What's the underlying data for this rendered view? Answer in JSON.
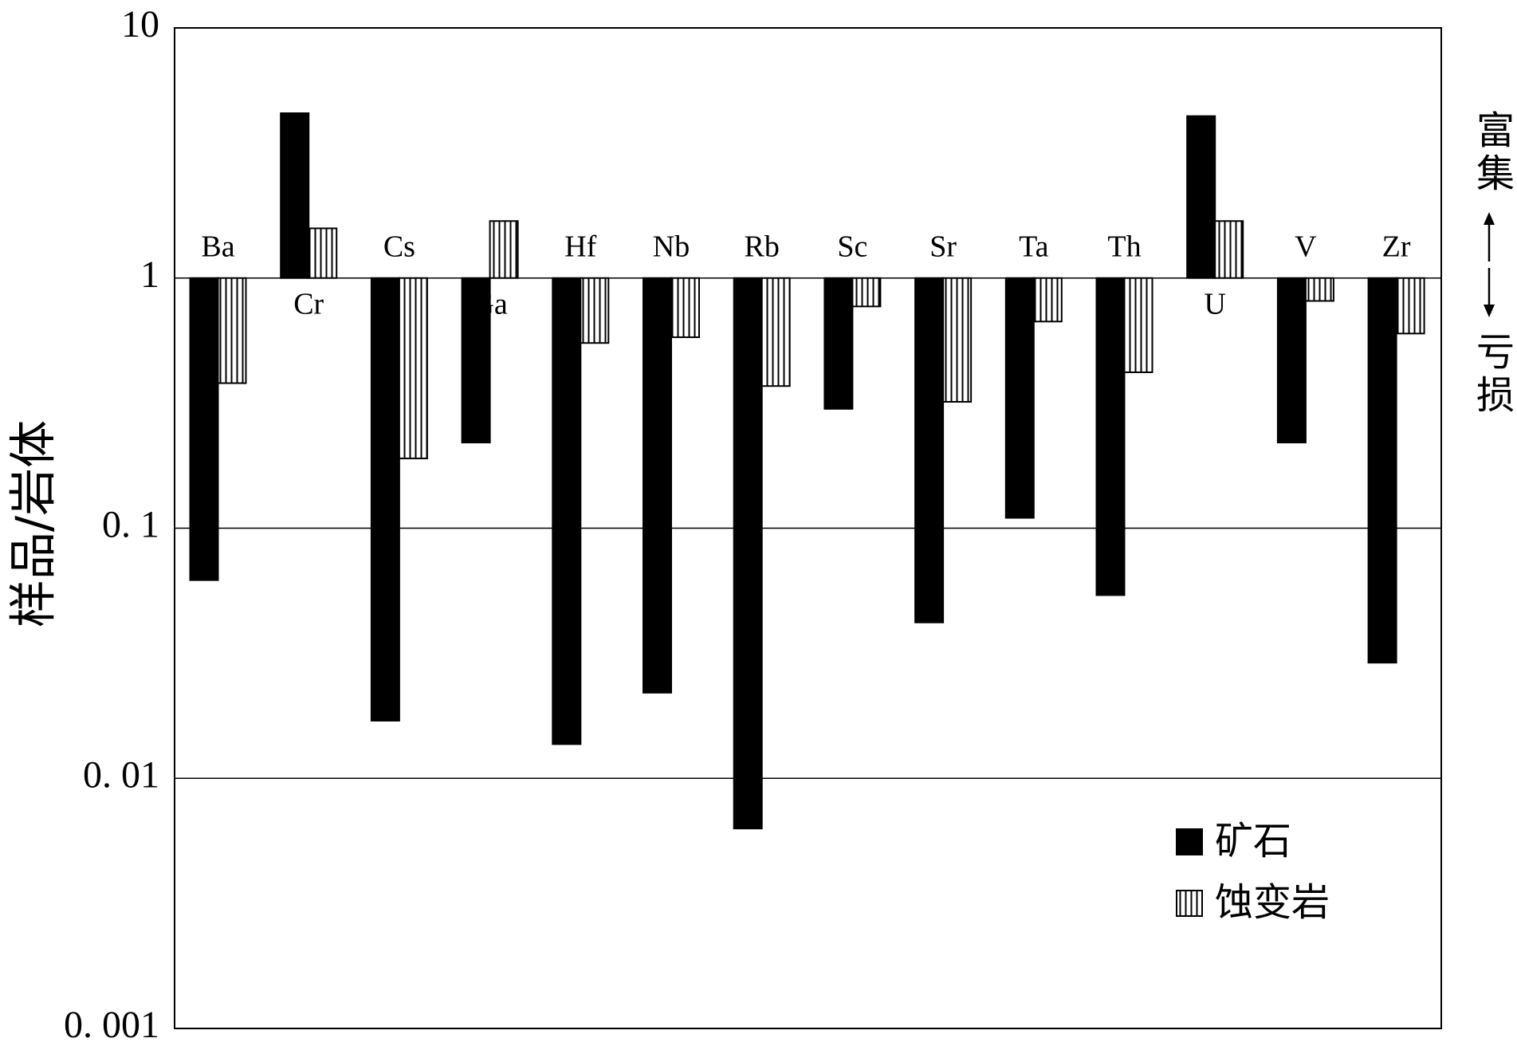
{
  "chart_data": {
    "type": "bar",
    "log_scale": true,
    "grid": true,
    "legend": "lower right",
    "y_label": "样品/岩体",
    "annotations": [
      "富集",
      "亏损"
    ],
    "categories": [
      "Ba",
      "Cr",
      "Cs",
      "Ga",
      "Hf",
      "Nb",
      "Rb",
      "Sc",
      "Sr",
      "Ta",
      "Th",
      "U",
      "V",
      "Zr"
    ],
    "series": [
      {
        "name": "矿石",
        "color": "#000000",
        "values": [
          0.062,
          4.56,
          0.017,
          0.22,
          0.0137,
          0.022,
          0.0063,
          0.3,
          0.042,
          0.11,
          0.054,
          4.44,
          0.22,
          0.029
        ]
      },
      {
        "name": "蚀变岩",
        "color": "hatch",
        "values": [
          0.38,
          1.58,
          0.19,
          1.69,
          0.55,
          0.58,
          0.37,
          0.77,
          0.32,
          0.67,
          0.42,
          1.69,
          0.81,
          0.6
        ]
      }
    ],
    "ylim": [
      0.001,
      10
    ],
    "yticks": [
      {
        "value": 0.001,
        "label": "0. 001"
      },
      {
        "value": 0.01,
        "label": "0. 01"
      },
      {
        "value": 0.1,
        "label": "0. 1"
      },
      1,
      10
    ]
  }
}
